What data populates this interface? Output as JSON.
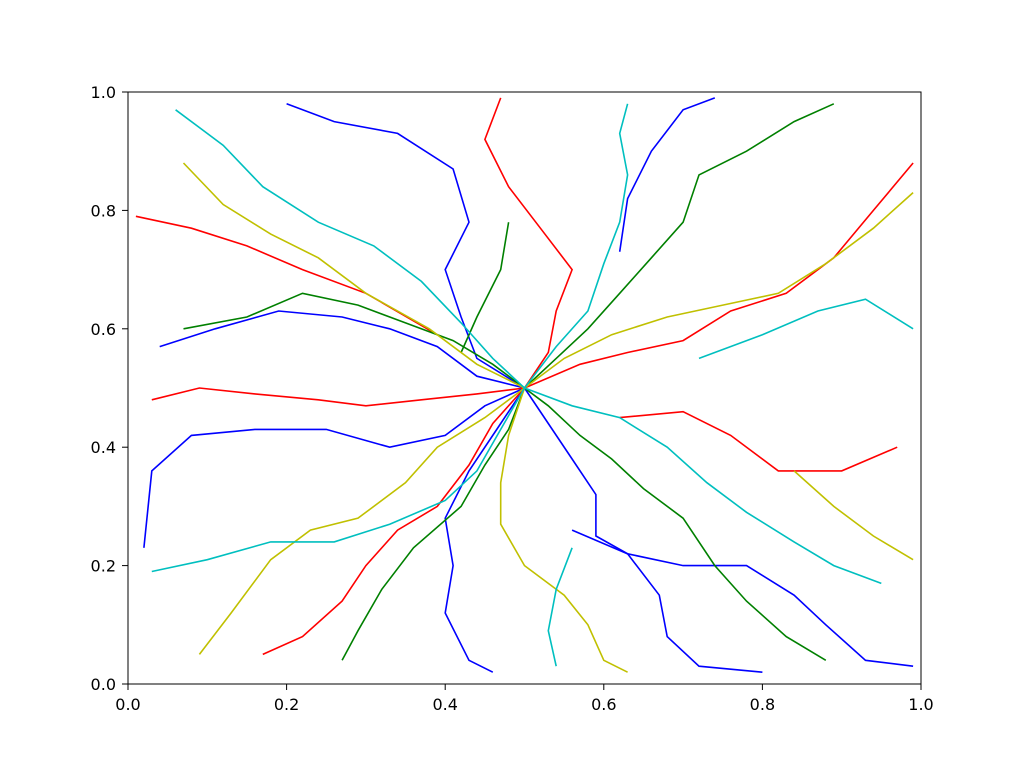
{
  "chart_data": {
    "type": "line",
    "xlim": [
      0.0,
      1.0
    ],
    "ylim": [
      0.0,
      1.0
    ],
    "grid": false,
    "x_ticks": [
      "0.0",
      "0.2",
      "0.4",
      "0.6",
      "0.8",
      "1.0"
    ],
    "y_ticks": [
      "0.0",
      "0.2",
      "0.4",
      "0.6",
      "0.8",
      "1.0"
    ],
    "root": [
      0.5,
      0.5
    ],
    "colors": [
      "#0000ff",
      "#ff0000",
      "#008000",
      "#c0c000",
      "#00bfbf"
    ],
    "series": [
      {
        "color": "#0000ff",
        "path": [
          [
            0.5,
            0.5
          ],
          [
            0.44,
            0.52
          ],
          [
            0.39,
            0.57
          ],
          [
            0.33,
            0.6
          ],
          [
            0.27,
            0.62
          ],
          [
            0.19,
            0.63
          ],
          [
            0.11,
            0.6
          ],
          [
            0.04,
            0.57
          ]
        ]
      },
      {
        "color": "#0000ff",
        "path": [
          [
            0.5,
            0.5
          ],
          [
            0.45,
            0.47
          ],
          [
            0.4,
            0.42
          ],
          [
            0.33,
            0.4
          ],
          [
            0.25,
            0.43
          ],
          [
            0.16,
            0.43
          ],
          [
            0.08,
            0.42
          ],
          [
            0.03,
            0.36
          ],
          [
            0.02,
            0.23
          ]
        ]
      },
      {
        "color": "#0000ff",
        "path": [
          [
            0.5,
            0.5
          ],
          [
            0.47,
            0.44
          ],
          [
            0.43,
            0.36
          ],
          [
            0.4,
            0.28
          ],
          [
            0.41,
            0.2
          ],
          [
            0.4,
            0.12
          ],
          [
            0.43,
            0.04
          ],
          [
            0.46,
            0.02
          ]
        ]
      },
      {
        "color": "#0000ff",
        "path": [
          [
            0.5,
            0.5
          ],
          [
            0.53,
            0.44
          ],
          [
            0.56,
            0.38
          ],
          [
            0.59,
            0.32
          ],
          [
            0.59,
            0.25
          ],
          [
            0.63,
            0.22
          ],
          [
            0.67,
            0.15
          ],
          [
            0.68,
            0.08
          ],
          [
            0.72,
            0.03
          ],
          [
            0.8,
            0.02
          ]
        ]
      },
      {
        "color": "#0000ff",
        "path": [
          [
            0.5,
            0.5
          ],
          [
            0.44,
            0.55
          ],
          [
            0.42,
            0.62
          ],
          [
            0.4,
            0.7
          ],
          [
            0.43,
            0.78
          ],
          [
            0.41,
            0.87
          ],
          [
            0.34,
            0.93
          ],
          [
            0.26,
            0.95
          ],
          [
            0.2,
            0.98
          ]
        ]
      },
      {
        "color": "#0000ff",
        "path": [
          [
            0.56,
            0.26
          ],
          [
            0.63,
            0.22
          ],
          [
            0.7,
            0.2
          ],
          [
            0.78,
            0.2
          ],
          [
            0.84,
            0.15
          ],
          [
            0.88,
            0.1
          ],
          [
            0.93,
            0.04
          ],
          [
            0.99,
            0.03
          ]
        ]
      },
      {
        "color": "#0000ff",
        "path": [
          [
            0.62,
            0.73
          ],
          [
            0.63,
            0.82
          ],
          [
            0.66,
            0.9
          ],
          [
            0.7,
            0.97
          ],
          [
            0.74,
            0.99
          ]
        ]
      },
      {
        "color": "#ff0000",
        "path": [
          [
            0.5,
            0.5
          ],
          [
            0.44,
            0.49
          ],
          [
            0.37,
            0.48
          ],
          [
            0.3,
            0.47
          ],
          [
            0.24,
            0.48
          ],
          [
            0.16,
            0.49
          ],
          [
            0.09,
            0.5
          ],
          [
            0.03,
            0.48
          ]
        ]
      },
      {
        "color": "#ff0000",
        "path": [
          [
            0.5,
            0.5
          ],
          [
            0.46,
            0.44
          ],
          [
            0.43,
            0.37
          ],
          [
            0.39,
            0.3
          ],
          [
            0.34,
            0.26
          ],
          [
            0.3,
            0.2
          ],
          [
            0.27,
            0.14
          ],
          [
            0.22,
            0.08
          ],
          [
            0.17,
            0.05
          ]
        ]
      },
      {
        "color": "#ff0000",
        "path": [
          [
            0.5,
            0.5
          ],
          [
            0.53,
            0.56
          ],
          [
            0.54,
            0.63
          ],
          [
            0.56,
            0.7
          ],
          [
            0.52,
            0.77
          ],
          [
            0.48,
            0.84
          ],
          [
            0.45,
            0.92
          ],
          [
            0.47,
            0.99
          ]
        ]
      },
      {
        "color": "#ff0000",
        "path": [
          [
            0.5,
            0.5
          ],
          [
            0.57,
            0.54
          ],
          [
            0.63,
            0.56
          ],
          [
            0.7,
            0.58
          ],
          [
            0.76,
            0.63
          ],
          [
            0.83,
            0.66
          ],
          [
            0.89,
            0.72
          ],
          [
            0.94,
            0.8
          ],
          [
            0.99,
            0.88
          ]
        ]
      },
      {
        "color": "#ff0000",
        "path": [
          [
            0.39,
            0.59
          ],
          [
            0.3,
            0.66
          ],
          [
            0.22,
            0.7
          ],
          [
            0.15,
            0.74
          ],
          [
            0.08,
            0.77
          ],
          [
            0.01,
            0.79
          ]
        ]
      },
      {
        "color": "#ff0000",
        "path": [
          [
            0.62,
            0.45
          ],
          [
            0.7,
            0.46
          ],
          [
            0.76,
            0.42
          ],
          [
            0.82,
            0.36
          ],
          [
            0.9,
            0.36
          ],
          [
            0.97,
            0.4
          ]
        ]
      },
      {
        "color": "#008000",
        "path": [
          [
            0.5,
            0.5
          ],
          [
            0.53,
            0.47
          ],
          [
            0.57,
            0.42
          ],
          [
            0.61,
            0.38
          ],
          [
            0.65,
            0.33
          ],
          [
            0.7,
            0.28
          ],
          [
            0.74,
            0.2
          ],
          [
            0.78,
            0.14
          ],
          [
            0.83,
            0.08
          ],
          [
            0.88,
            0.04
          ]
        ]
      },
      {
        "color": "#008000",
        "path": [
          [
            0.5,
            0.5
          ],
          [
            0.46,
            0.54
          ],
          [
            0.41,
            0.58
          ],
          [
            0.35,
            0.61
          ],
          [
            0.29,
            0.64
          ],
          [
            0.22,
            0.66
          ],
          [
            0.15,
            0.62
          ],
          [
            0.07,
            0.6
          ]
        ]
      },
      {
        "color": "#008000",
        "path": [
          [
            0.5,
            0.5
          ],
          [
            0.54,
            0.55
          ],
          [
            0.58,
            0.6
          ],
          [
            0.62,
            0.66
          ],
          [
            0.66,
            0.72
          ],
          [
            0.7,
            0.78
          ],
          [
            0.72,
            0.86
          ],
          [
            0.78,
            0.9
          ],
          [
            0.84,
            0.95
          ],
          [
            0.89,
            0.98
          ]
        ]
      },
      {
        "color": "#008000",
        "path": [
          [
            0.5,
            0.5
          ],
          [
            0.48,
            0.43
          ],
          [
            0.45,
            0.37
          ],
          [
            0.42,
            0.3
          ],
          [
            0.36,
            0.23
          ],
          [
            0.32,
            0.16
          ],
          [
            0.29,
            0.09
          ],
          [
            0.27,
            0.04
          ]
        ]
      },
      {
        "color": "#008000",
        "path": [
          [
            0.48,
            0.78
          ],
          [
            0.47,
            0.7
          ],
          [
            0.44,
            0.62
          ],
          [
            0.42,
            0.56
          ]
        ]
      },
      {
        "color": "#c0c000",
        "path": [
          [
            0.5,
            0.5
          ],
          [
            0.45,
            0.45
          ],
          [
            0.39,
            0.4
          ],
          [
            0.35,
            0.34
          ],
          [
            0.29,
            0.28
          ],
          [
            0.23,
            0.26
          ],
          [
            0.18,
            0.21
          ],
          [
            0.13,
            0.12
          ],
          [
            0.09,
            0.05
          ]
        ]
      },
      {
        "color": "#c0c000",
        "path": [
          [
            0.5,
            0.5
          ],
          [
            0.55,
            0.55
          ],
          [
            0.61,
            0.59
          ],
          [
            0.68,
            0.62
          ],
          [
            0.75,
            0.64
          ],
          [
            0.82,
            0.66
          ],
          [
            0.88,
            0.71
          ],
          [
            0.94,
            0.77
          ],
          [
            0.99,
            0.83
          ]
        ]
      },
      {
        "color": "#c0c000",
        "path": [
          [
            0.5,
            0.5
          ],
          [
            0.48,
            0.42
          ],
          [
            0.47,
            0.34
          ],
          [
            0.47,
            0.27
          ],
          [
            0.5,
            0.2
          ],
          [
            0.55,
            0.15
          ],
          [
            0.58,
            0.1
          ],
          [
            0.6,
            0.04
          ],
          [
            0.63,
            0.02
          ]
        ]
      },
      {
        "color": "#c0c000",
        "path": [
          [
            0.5,
            0.5
          ],
          [
            0.44,
            0.54
          ],
          [
            0.38,
            0.6
          ],
          [
            0.3,
            0.66
          ],
          [
            0.24,
            0.72
          ],
          [
            0.18,
            0.76
          ],
          [
            0.12,
            0.81
          ],
          [
            0.07,
            0.88
          ]
        ]
      },
      {
        "color": "#c0c000",
        "path": [
          [
            0.84,
            0.36
          ],
          [
            0.89,
            0.3
          ],
          [
            0.94,
            0.25
          ],
          [
            0.99,
            0.21
          ]
        ]
      },
      {
        "color": "#00bfbf",
        "path": [
          [
            0.5,
            0.5
          ],
          [
            0.46,
            0.55
          ],
          [
            0.42,
            0.61
          ],
          [
            0.37,
            0.68
          ],
          [
            0.31,
            0.74
          ],
          [
            0.24,
            0.78
          ],
          [
            0.17,
            0.84
          ],
          [
            0.12,
            0.91
          ],
          [
            0.06,
            0.97
          ]
        ]
      },
      {
        "color": "#00bfbf",
        "path": [
          [
            0.5,
            0.5
          ],
          [
            0.56,
            0.47
          ],
          [
            0.62,
            0.45
          ],
          [
            0.68,
            0.4
          ],
          [
            0.73,
            0.34
          ],
          [
            0.78,
            0.29
          ],
          [
            0.84,
            0.24
          ],
          [
            0.89,
            0.2
          ],
          [
            0.95,
            0.17
          ]
        ]
      },
      {
        "color": "#00bfbf",
        "path": [
          [
            0.5,
            0.5
          ],
          [
            0.54,
            0.57
          ],
          [
            0.58,
            0.63
          ],
          [
            0.6,
            0.71
          ],
          [
            0.62,
            0.78
          ],
          [
            0.63,
            0.86
          ],
          [
            0.62,
            0.93
          ],
          [
            0.63,
            0.98
          ]
        ]
      },
      {
        "color": "#00bfbf",
        "path": [
          [
            0.5,
            0.5
          ],
          [
            0.47,
            0.43
          ],
          [
            0.44,
            0.36
          ],
          [
            0.4,
            0.31
          ],
          [
            0.33,
            0.27
          ],
          [
            0.26,
            0.24
          ],
          [
            0.18,
            0.24
          ],
          [
            0.1,
            0.21
          ],
          [
            0.03,
            0.19
          ]
        ]
      },
      {
        "color": "#00bfbf",
        "path": [
          [
            0.72,
            0.55
          ],
          [
            0.8,
            0.59
          ],
          [
            0.87,
            0.63
          ],
          [
            0.93,
            0.65
          ],
          [
            0.99,
            0.6
          ]
        ]
      },
      {
        "color": "#00bfbf",
        "path": [
          [
            0.56,
            0.23
          ],
          [
            0.54,
            0.16
          ],
          [
            0.53,
            0.09
          ],
          [
            0.54,
            0.03
          ]
        ]
      }
    ]
  }
}
